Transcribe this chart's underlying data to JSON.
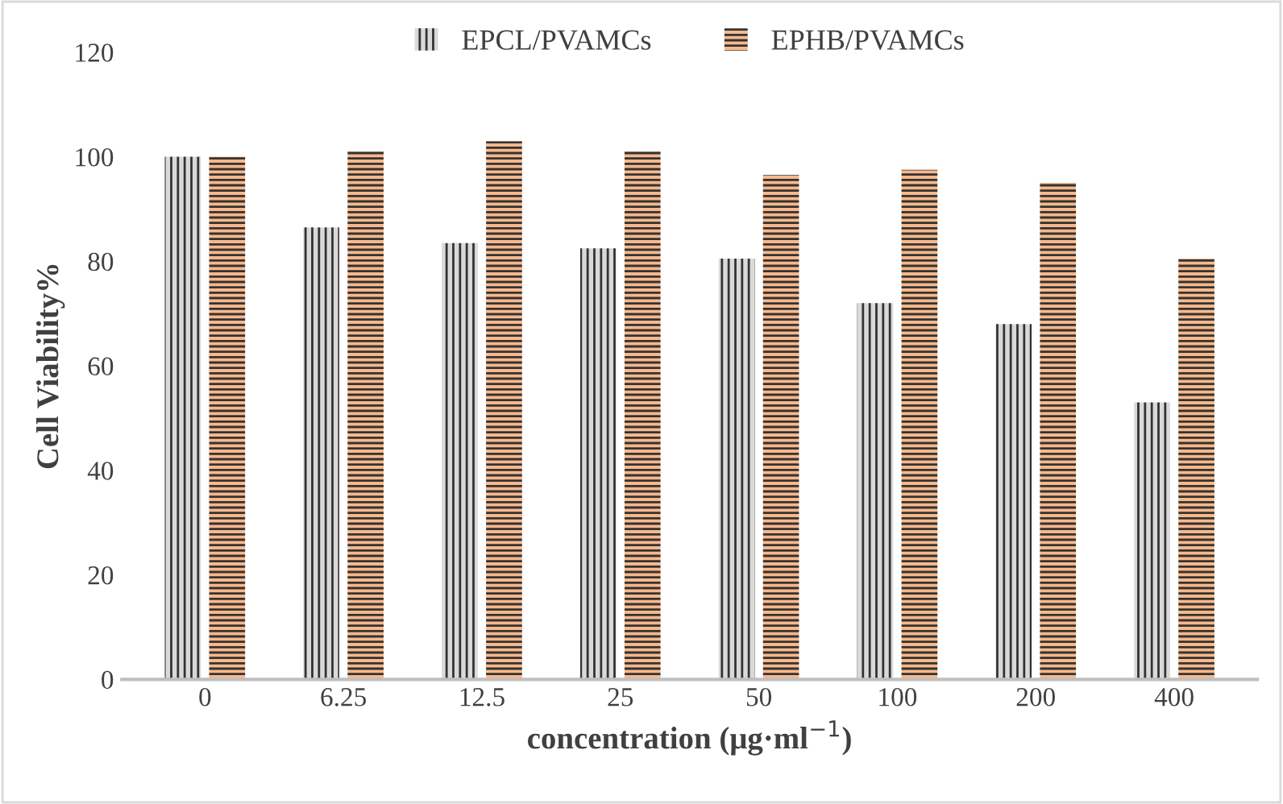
{
  "chart_data": {
    "type": "bar",
    "xlabel": "concentration (μg·ml$^{−1}$)",
    "ylabel": "Cell Viability%",
    "categories": [
      "0",
      "6.25",
      "12.5",
      "25",
      "50",
      "100",
      "200",
      "400"
    ],
    "series": [
      {
        "name": "EPCL/PVAMCs",
        "color": "#d9d9d9",
        "values": [
          100,
          86.5,
          83.5,
          82.5,
          80.5,
          72,
          68,
          53
        ]
      },
      {
        "name": "EPHB/PVAMCs",
        "color": "#f8b88b",
        "values": [
          100,
          101,
          103,
          101,
          96.5,
          97.5,
          95,
          80.5
        ]
      }
    ],
    "ylim": [
      0,
      120
    ],
    "yticks": [
      0,
      20,
      40,
      60,
      80,
      100,
      120
    ],
    "grid": false,
    "legend": "top"
  }
}
